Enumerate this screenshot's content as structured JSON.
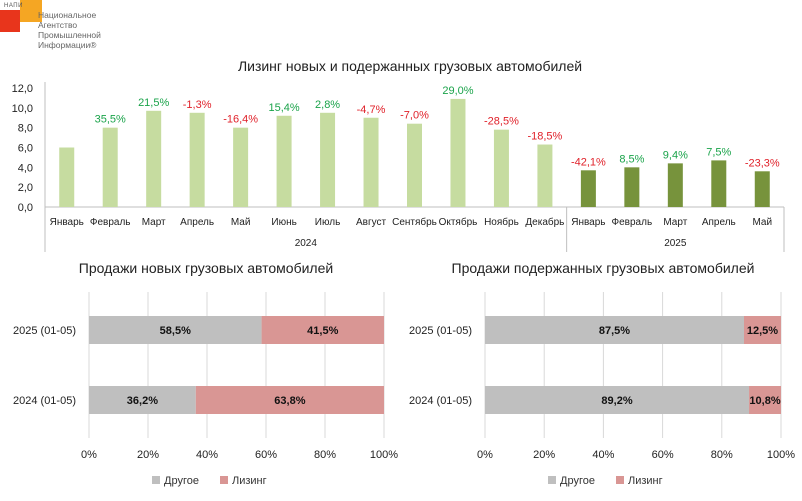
{
  "logo": {
    "abbr": "НАПИ",
    "lines": [
      "Национальное",
      "Агентство",
      "Промышленной",
      "Информации®"
    ]
  },
  "chart_data": [
    {
      "type": "bar",
      "title": "Лизинг новых и подержанных  грузовых автомобилей",
      "ylim": [
        0,
        12
      ],
      "yticks": [
        "0,0",
        "2,0",
        "4,0",
        "6,0",
        "8,0",
        "10,0",
        "12,0"
      ],
      "grid": false,
      "groups": [
        {
          "label": "2024",
          "categories": [
            "Январь",
            "Февраль",
            "Март",
            "Апрель",
            "Май",
            "Июнь",
            "Июль",
            "Август",
            "Сентябрь",
            "Октябрь",
            "Ноябрь",
            "Декабрь"
          ]
        },
        {
          "label": "2025",
          "categories": [
            "Январь",
            "Февраль",
            "Март",
            "Апрель",
            "Май"
          ]
        }
      ],
      "values": [
        6.0,
        8.0,
        9.7,
        9.5,
        8.0,
        9.2,
        9.5,
        9.0,
        8.4,
        10.9,
        7.8,
        6.3,
        3.7,
        4.0,
        4.4,
        4.7,
        3.6
      ],
      "annotations": [
        "",
        "35,5%",
        "21,5%",
        "-1,3%",
        "-16,4%",
        "15,4%",
        "2,8%",
        "-4,7%",
        "-7,0%",
        "29,0%",
        "-28,5%",
        "-18,5%",
        "-42,1%",
        "8,5%",
        "9,4%",
        "7,5%",
        "-23,3%"
      ],
      "colors": {
        "2024": "#c6dca0",
        "2025": "#77933c",
        "positive": "#1aa34a",
        "negative": "#e0212a"
      }
    },
    {
      "type": "bar",
      "orientation": "horizontal-stacked-100",
      "title": "Продажи новых грузовых автомобилей",
      "categories": [
        "2025 (01-05)",
        "2024 (01-05)"
      ],
      "series": [
        {
          "name": "Другое",
          "values": [
            58.5,
            36.2
          ],
          "labels": [
            "58,5%",
            "36,2%"
          ],
          "color": "#bfbfbf"
        },
        {
          "name": "Лизинг",
          "values": [
            41.5,
            63.8
          ],
          "labels": [
            "41,5%",
            "63,8%"
          ],
          "color": "#d99694"
        }
      ],
      "xticks": [
        "0%",
        "20%",
        "40%",
        "60%",
        "80%",
        "100%"
      ],
      "legend": "bottom"
    },
    {
      "type": "bar",
      "orientation": "horizontal-stacked-100",
      "title": "Продажи подержанных грузовых автомобилей",
      "categories": [
        "2025 (01-05)",
        "2024 (01-05)"
      ],
      "series": [
        {
          "name": "Другое",
          "values": [
            87.5,
            89.2
          ],
          "labels": [
            "87,5%",
            "89,2%"
          ],
          "color": "#bfbfbf"
        },
        {
          "name": "Лизинг",
          "values": [
            12.5,
            10.8
          ],
          "labels": [
            "12,5%",
            "10,8%"
          ],
          "color": "#d99694"
        }
      ],
      "xticks": [
        "0%",
        "20%",
        "40%",
        "60%",
        "80%",
        "100%"
      ],
      "legend": "bottom"
    }
  ]
}
